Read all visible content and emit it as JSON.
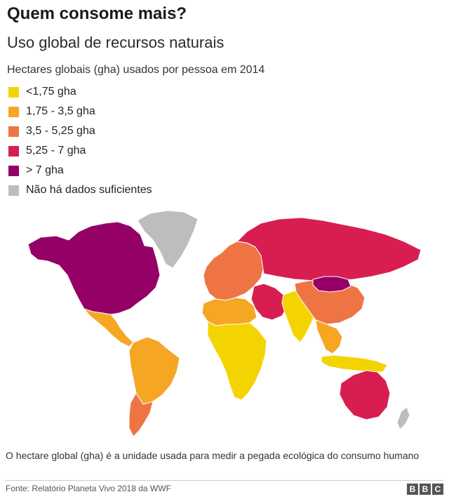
{
  "header": {
    "title": "Quem consome mais?",
    "subtitle": "Uso global de recursos naturais"
  },
  "legend": {
    "title": "Hectares globais (gha) usados por pessoa em 2014",
    "items": [
      {
        "label": "<1,75 gha",
        "color": "#f4d400"
      },
      {
        "label": "1,75 - 3,5 gha",
        "color": "#f5a623"
      },
      {
        "label": "3,5 - 5,25 gha",
        "color": "#ef7444"
      },
      {
        "label": "5,25 - 7 gha",
        "color": "#d81e50"
      },
      {
        "label": "> 7 gha",
        "color": "#950066"
      },
      {
        "label": "Não há dados suficientes",
        "color": "#bdbdbd"
      }
    ]
  },
  "map": {
    "regions": [
      {
        "name": "north-america",
        "color": "#950066"
      },
      {
        "name": "greenland",
        "color": "#bdbdbd"
      },
      {
        "name": "central-america",
        "color": "#f5a623"
      },
      {
        "name": "south-america",
        "color": "#f5a623"
      },
      {
        "name": "southern-cone",
        "color": "#ef7444"
      },
      {
        "name": "europe",
        "color": "#ef7444"
      },
      {
        "name": "russia",
        "color": "#d81e50"
      },
      {
        "name": "middle-east",
        "color": "#d81e50"
      },
      {
        "name": "north-africa",
        "color": "#f5a623"
      },
      {
        "name": "sub-saharan-africa",
        "color": "#f4d400"
      },
      {
        "name": "india",
        "color": "#f4d400"
      },
      {
        "name": "china",
        "color": "#ef7444"
      },
      {
        "name": "mongolia",
        "color": "#950066"
      },
      {
        "name": "southeast-asia",
        "color": "#f5a623"
      },
      {
        "name": "indonesia",
        "color": "#f4d400"
      },
      {
        "name": "australia",
        "color": "#d81e50"
      },
      {
        "name": "new-zealand",
        "color": "#bdbdbd"
      }
    ]
  },
  "footer": {
    "note": "O hectare global (gha) é a unidade usada para medir a pegada ecológica do consumo humano",
    "source": "Fonte: Relatório Planeta Vivo 2018 da WWF",
    "logo_letters": [
      "B",
      "B",
      "C"
    ]
  }
}
